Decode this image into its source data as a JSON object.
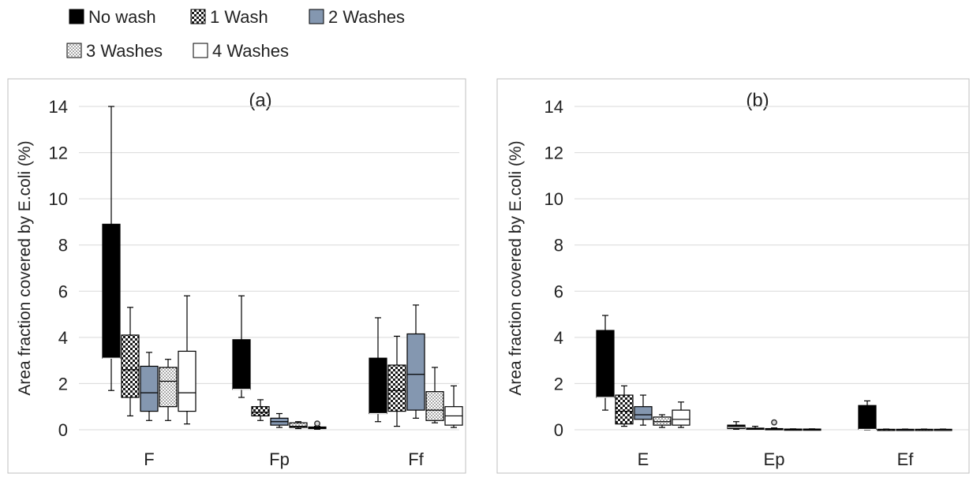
{
  "legend": {
    "items": [
      {
        "label": "No wash",
        "pattern": "solid-black"
      },
      {
        "label": "1 Wash",
        "pattern": "checker"
      },
      {
        "label": "2 Washes",
        "pattern": "solid-blue"
      },
      {
        "label": "3 Washes",
        "pattern": "dots"
      },
      {
        "label": "4 Washes",
        "pattern": "white"
      }
    ]
  },
  "colors": {
    "no_wash": "#000000",
    "two_washes": "#8497b0",
    "gridline": "#d9d9d9",
    "frame": "#bfbfbf"
  },
  "chart_data": [
    {
      "type": "box",
      "panel_label": "(a)",
      "ylabel": "Area fraction covered by E.coli (%)",
      "xlabel": "",
      "ylim": [
        0,
        14
      ],
      "yticks": [
        0,
        2,
        4,
        6,
        8,
        10,
        12,
        14
      ],
      "grid": true,
      "categories": [
        "F",
        "Fp",
        "Ff"
      ],
      "series": [
        {
          "name": "No wash",
          "boxes": [
            {
              "min": 1.7,
              "q1": 3.1,
              "median": 3.1,
              "q3": 8.9,
              "max": 14.0
            },
            {
              "min": 1.4,
              "q1": 1.75,
              "median": 1.75,
              "q3": 3.9,
              "max": 5.8
            },
            {
              "min": 0.35,
              "q1": 0.7,
              "median": 0.7,
              "q3": 3.1,
              "max": 4.85
            }
          ]
        },
        {
          "name": "1 Wash",
          "boxes": [
            {
              "min": 0.6,
              "q1": 1.4,
              "median": 2.6,
              "q3": 4.1,
              "max": 5.3
            },
            {
              "min": 0.4,
              "q1": 0.6,
              "median": 0.75,
              "q3": 1.0,
              "max": 1.3
            },
            {
              "min": 0.15,
              "q1": 0.8,
              "median": 1.7,
              "q3": 2.8,
              "max": 4.05
            }
          ]
        },
        {
          "name": "2 Washes",
          "boxes": [
            {
              "min": 0.4,
              "q1": 0.8,
              "median": 1.6,
              "q3": 2.75,
              "max": 3.35
            },
            {
              "min": 0.1,
              "q1": 0.2,
              "median": 0.35,
              "q3": 0.5,
              "max": 0.7
            },
            {
              "min": 0.5,
              "q1": 0.85,
              "median": 2.4,
              "q3": 4.15,
              "max": 5.4
            }
          ]
        },
        {
          "name": "3 Washes",
          "boxes": [
            {
              "min": 0.4,
              "q1": 1.0,
              "median": 2.1,
              "q3": 2.7,
              "max": 3.05
            },
            {
              "min": 0.05,
              "q1": 0.1,
              "median": 0.15,
              "q3": 0.3,
              "max": 0.35
            },
            {
              "min": 0.3,
              "q1": 0.4,
              "median": 0.85,
              "q3": 1.65,
              "max": 2.7
            }
          ]
        },
        {
          "name": "4 Washes",
          "boxes": [
            {
              "min": 0.25,
              "q1": 0.8,
              "median": 1.6,
              "q3": 3.4,
              "max": 5.8
            },
            {
              "min": 0.02,
              "q1": 0.05,
              "median": 0.08,
              "q3": 0.12,
              "max": 0.15,
              "outliers": [
                0.2
              ]
            },
            {
              "min": 0.1,
              "q1": 0.2,
              "median": 0.6,
              "q3": 1.0,
              "max": 1.9
            }
          ]
        }
      ]
    },
    {
      "type": "box",
      "panel_label": "(b)",
      "ylabel": "Area fraction covered by E.coli (%)",
      "xlabel": "",
      "ylim": [
        0,
        14
      ],
      "yticks": [
        0,
        2,
        4,
        6,
        8,
        10,
        12,
        14
      ],
      "grid": true,
      "categories": [
        "E",
        "Ep",
        "Ef"
      ],
      "series": [
        {
          "name": "No wash",
          "boxes": [
            {
              "min": 0.85,
              "q1": 1.4,
              "median": 1.4,
              "q3": 4.3,
              "max": 4.95
            },
            {
              "min": 0.02,
              "q1": 0.05,
              "median": 0.1,
              "q3": 0.2,
              "max": 0.35
            },
            {
              "min": 0.0,
              "q1": 0.02,
              "median": 0.02,
              "q3": 1.05,
              "max": 1.25
            }
          ]
        },
        {
          "name": "1 Wash",
          "boxes": [
            {
              "min": 0.15,
              "q1": 0.25,
              "median": 0.8,
              "q3": 1.5,
              "max": 1.9
            },
            {
              "min": 0.02,
              "q1": 0.03,
              "median": 0.05,
              "q3": 0.07,
              "max": 0.15
            },
            {
              "min": 0.0,
              "q1": 0.0,
              "median": 0.01,
              "q3": 0.02,
              "max": 0.03
            }
          ]
        },
        {
          "name": "2 Washes",
          "boxes": [
            {
              "min": 0.2,
              "q1": 0.45,
              "median": 0.65,
              "q3": 1.0,
              "max": 1.5
            },
            {
              "min": 0.01,
              "q1": 0.02,
              "median": 0.03,
              "q3": 0.05,
              "max": 0.08,
              "outliers": [
                0.25
              ]
            },
            {
              "min": 0.0,
              "q1": 0.0,
              "median": 0.01,
              "q3": 0.02,
              "max": 0.03
            }
          ]
        },
        {
          "name": "3 Washes",
          "boxes": [
            {
              "min": 0.1,
              "q1": 0.2,
              "median": 0.35,
              "q3": 0.55,
              "max": 0.65
            },
            {
              "min": 0.0,
              "q1": 0.01,
              "median": 0.02,
              "q3": 0.03,
              "max": 0.04
            },
            {
              "min": 0.0,
              "q1": 0.0,
              "median": 0.01,
              "q3": 0.02,
              "max": 0.03
            }
          ]
        },
        {
          "name": "4 Washes",
          "boxes": [
            {
              "min": 0.1,
              "q1": 0.2,
              "median": 0.45,
              "q3": 0.85,
              "max": 1.2
            },
            {
              "min": 0.0,
              "q1": 0.01,
              "median": 0.02,
              "q3": 0.03,
              "max": 0.04
            },
            {
              "min": 0.0,
              "q1": 0.0,
              "median": 0.01,
              "q3": 0.02,
              "max": 0.03
            }
          ]
        }
      ]
    }
  ]
}
